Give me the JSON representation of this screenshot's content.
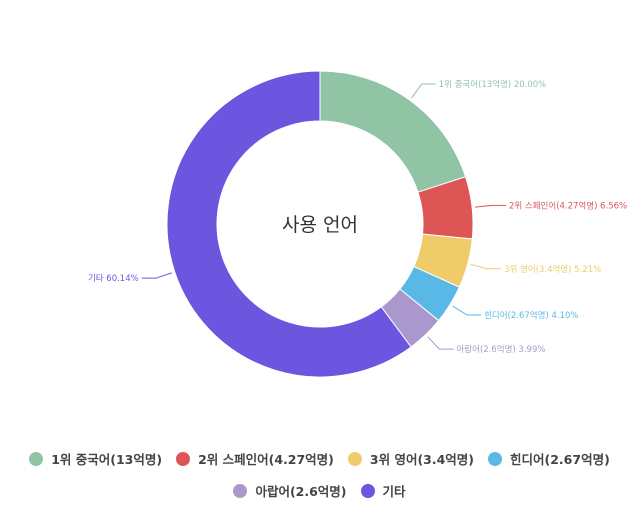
{
  "chart_data": {
    "type": "pie",
    "title": "사용 언어",
    "slices": [
      {
        "label": "1위 중국어(13억명)",
        "value": 20.0,
        "value_label": "20.00%",
        "color": "#91c4a5"
      },
      {
        "label": "2위 스페인어(4.27억명)",
        "value": 6.56,
        "value_label": "6.56%",
        "color": "#dd5555"
      },
      {
        "label": "3위 영어(3.4억명)",
        "value": 5.21,
        "value_label": "5.21%",
        "color": "#efcb6a"
      },
      {
        "label": "힌디어(2.67억명)",
        "value": 4.1,
        "value_label": "4.10%",
        "color": "#5ab8e6"
      },
      {
        "label": "아랍어(2.6억명)",
        "value": 3.99,
        "value_label": "3.99%",
        "color": "#aa98cc"
      },
      {
        "label": "기타",
        "value": 60.14,
        "value_label": "60.14%",
        "color": "#6c55df"
      }
    ],
    "legend_position": "bottom"
  }
}
